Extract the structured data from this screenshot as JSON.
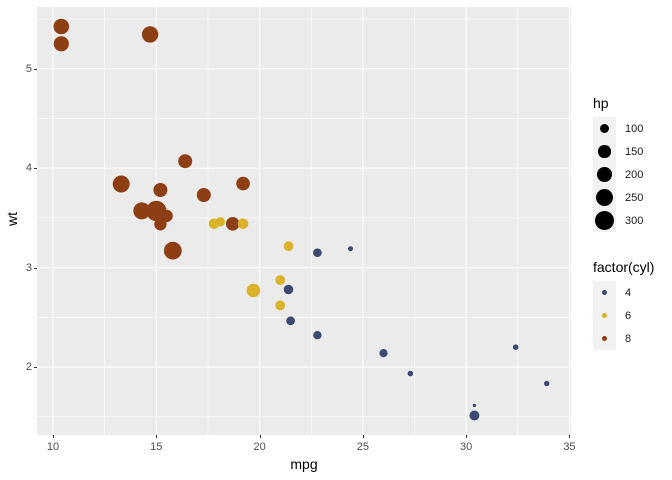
{
  "chart_data": {
    "type": "scatter",
    "title": "",
    "xlabel": "mpg",
    "ylabel": "wt",
    "x_ticks": [
      10,
      15,
      20,
      25,
      30,
      35
    ],
    "y_ticks": [
      2,
      3,
      4,
      5
    ],
    "x_minor_ticks": [
      12.5,
      17.5,
      22.5,
      27.5,
      32.5
    ],
    "y_minor_ticks": [
      1.5,
      2.5,
      3.5,
      4.5,
      5.5
    ],
    "x_domain": [
      9.225,
      35.075
    ],
    "y_domain": [
      1.317,
      5.62
    ],
    "size_variable": "hp",
    "color_variable": "factor(cyl)",
    "grid": "on",
    "points": [
      {
        "mpg": 21.0,
        "wt": 2.62,
        "hp": 110,
        "cyl": 6
      },
      {
        "mpg": 21.0,
        "wt": 2.875,
        "hp": 110,
        "cyl": 6
      },
      {
        "mpg": 22.8,
        "wt": 2.32,
        "hp": 93,
        "cyl": 4
      },
      {
        "mpg": 21.4,
        "wt": 3.215,
        "hp": 110,
        "cyl": 6
      },
      {
        "mpg": 18.7,
        "wt": 3.44,
        "hp": 175,
        "cyl": 8
      },
      {
        "mpg": 18.1,
        "wt": 3.46,
        "hp": 105,
        "cyl": 6
      },
      {
        "mpg": 14.3,
        "wt": 3.57,
        "hp": 245,
        "cyl": 8
      },
      {
        "mpg": 24.4,
        "wt": 3.19,
        "hp": 62,
        "cyl": 4
      },
      {
        "mpg": 22.8,
        "wt": 3.15,
        "hp": 95,
        "cyl": 4
      },
      {
        "mpg": 19.2,
        "wt": 3.44,
        "hp": 123,
        "cyl": 6
      },
      {
        "mpg": 17.8,
        "wt": 3.44,
        "hp": 123,
        "cyl": 6
      },
      {
        "mpg": 16.4,
        "wt": 4.07,
        "hp": 180,
        "cyl": 8
      },
      {
        "mpg": 17.3,
        "wt": 3.73,
        "hp": 180,
        "cyl": 8
      },
      {
        "mpg": 15.2,
        "wt": 3.78,
        "hp": 180,
        "cyl": 8
      },
      {
        "mpg": 10.4,
        "wt": 5.25,
        "hp": 205,
        "cyl": 8
      },
      {
        "mpg": 10.4,
        "wt": 5.424,
        "hp": 215,
        "cyl": 8
      },
      {
        "mpg": 14.7,
        "wt": 5.345,
        "hp": 230,
        "cyl": 8
      },
      {
        "mpg": 32.4,
        "wt": 2.2,
        "hp": 66,
        "cyl": 4
      },
      {
        "mpg": 30.4,
        "wt": 1.615,
        "hp": 52,
        "cyl": 4
      },
      {
        "mpg": 33.9,
        "wt": 1.835,
        "hp": 65,
        "cyl": 4
      },
      {
        "mpg": 21.5,
        "wt": 2.465,
        "hp": 97,
        "cyl": 4
      },
      {
        "mpg": 15.5,
        "wt": 3.52,
        "hp": 150,
        "cyl": 8
      },
      {
        "mpg": 15.2,
        "wt": 3.435,
        "hp": 150,
        "cyl": 8
      },
      {
        "mpg": 13.3,
        "wt": 3.84,
        "hp": 245,
        "cyl": 8
      },
      {
        "mpg": 19.2,
        "wt": 3.845,
        "hp": 175,
        "cyl": 8
      },
      {
        "mpg": 27.3,
        "wt": 1.935,
        "hp": 66,
        "cyl": 4
      },
      {
        "mpg": 26.0,
        "wt": 2.14,
        "hp": 91,
        "cyl": 4
      },
      {
        "mpg": 30.4,
        "wt": 1.513,
        "hp": 113,
        "cyl": 4
      },
      {
        "mpg": 15.8,
        "wt": 3.17,
        "hp": 264,
        "cyl": 8
      },
      {
        "mpg": 19.7,
        "wt": 2.77,
        "hp": 175,
        "cyl": 6
      },
      {
        "mpg": 15.0,
        "wt": 3.57,
        "hp": 335,
        "cyl": 8
      },
      {
        "mpg": 21.4,
        "wt": 2.78,
        "hp": 109,
        "cyl": 4
      }
    ]
  },
  "legends": {
    "hp": {
      "title": "hp",
      "entries": [
        {
          "label": "100",
          "value": 100
        },
        {
          "label": "150",
          "value": 150
        },
        {
          "label": "200",
          "value": 200
        },
        {
          "label": "250",
          "value": 250
        },
        {
          "label": "300",
          "value": 300
        }
      ]
    },
    "cyl": {
      "title": "factor(cyl)",
      "entries": [
        {
          "label": "4",
          "color": "#3B4A73"
        },
        {
          "label": "6",
          "color": "#DAB32A"
        },
        {
          "label": "8",
          "color": "#8E3E13"
        }
      ]
    }
  },
  "colors": {
    "panel_bg": "#EBEBEB",
    "grid": "#FFFFFF",
    "cyl_4": "#3B4A73",
    "cyl_6": "#DAB32A",
    "cyl_8": "#8E3E13",
    "legend_dot": "#000000",
    "legend_key_bg": "#F2F2F2",
    "tick_text": "#4D4D4D",
    "axis_title_text": "#000000",
    "tick_mark": "#333333"
  }
}
